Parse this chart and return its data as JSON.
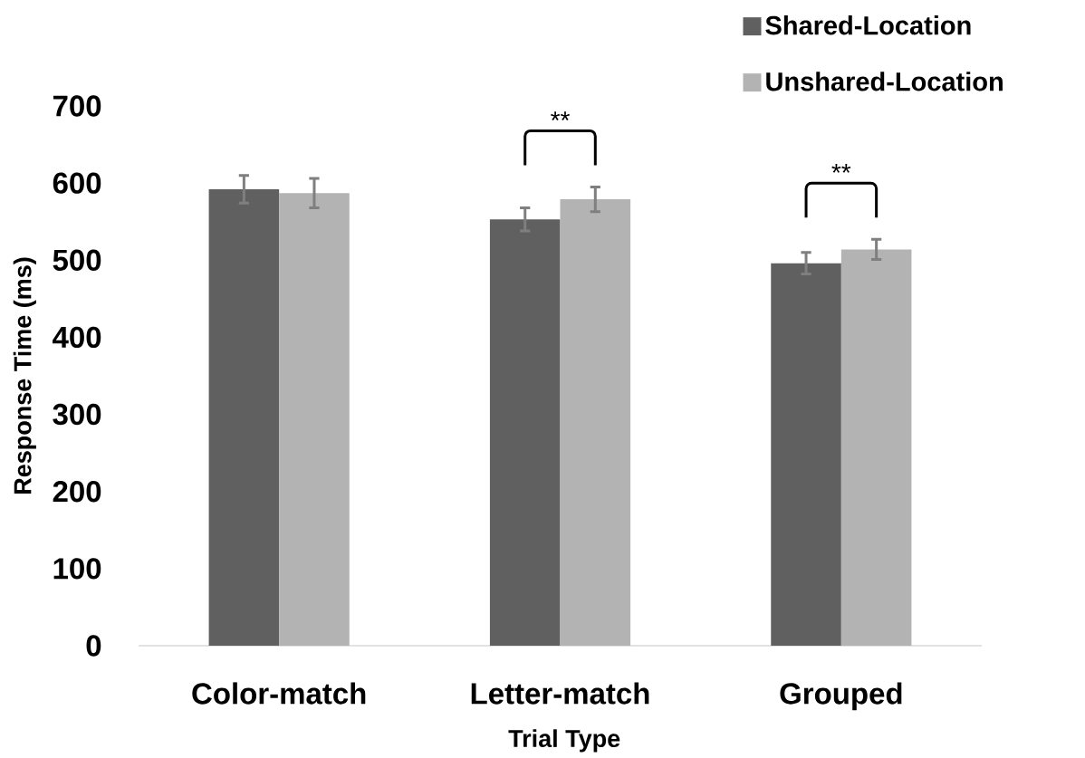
{
  "chart_data": {
    "type": "bar",
    "xlabel": "Trial Type",
    "ylabel": "Response Time (ms)",
    "categories": [
      "Color-match",
      "Letter-match",
      "Grouped"
    ],
    "series": [
      {
        "name": "Shared-Location",
        "color": "#606060",
        "values": [
          592,
          553,
          496
        ],
        "errors": [
          18,
          15,
          14
        ]
      },
      {
        "name": "Unshared-Location",
        "color": "#b3b3b3",
        "values": [
          587,
          579,
          514
        ],
        "errors": [
          19,
          16,
          13
        ]
      }
    ],
    "ylim": [
      0,
      700
    ],
    "yticks": [
      0,
      100,
      200,
      300,
      400,
      500,
      600,
      700
    ],
    "legend": "top right",
    "annotations": [
      "**",
      "**"
    ]
  }
}
